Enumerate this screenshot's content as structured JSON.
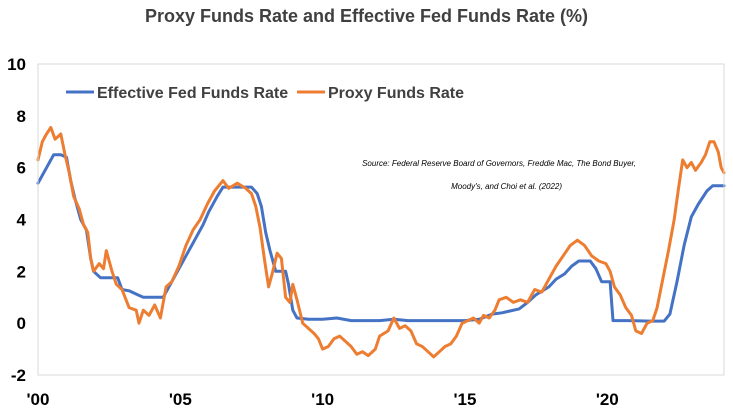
{
  "chart_data": {
    "type": "line",
    "title": "Proxy Funds Rate and Effective Fed Funds Rate (%)",
    "xlabel": "",
    "ylabel": "",
    "xlim": [
      2000,
      2024.1
    ],
    "ylim": [
      -2,
      10
    ],
    "x_ticks": [
      {
        "value": 2000,
        "label": "'00"
      },
      {
        "value": 2005,
        "label": "'05"
      },
      {
        "value": 2010,
        "label": "'10"
      },
      {
        "value": 2015,
        "label": "'15"
      },
      {
        "value": 2020,
        "label": "'20"
      }
    ],
    "y_ticks": [
      -2,
      0,
      2,
      4,
      6,
      8,
      10
    ],
    "grid": false,
    "legend_position": "top-left",
    "annotation": {
      "line1": "Source: Federal Reserve Board of Governors, Freddie Mac, The Bond Buyer,",
      "line2": "Moody's, and Choi et al. (2022)"
    },
    "series": [
      {
        "name": "Effective Fed Funds Rate",
        "color": "#4472C4",
        "points": [
          [
            2000.0,
            5.4
          ],
          [
            2000.2,
            5.8
          ],
          [
            2000.4,
            6.2
          ],
          [
            2000.55,
            6.5
          ],
          [
            2000.8,
            6.5
          ],
          [
            2001.0,
            6.4
          ],
          [
            2001.15,
            5.5
          ],
          [
            2001.3,
            4.8
          ],
          [
            2001.5,
            4.0
          ],
          [
            2001.7,
            3.6
          ],
          [
            2001.85,
            2.5
          ],
          [
            2001.95,
            2.0
          ],
          [
            2002.2,
            1.75
          ],
          [
            2002.5,
            1.75
          ],
          [
            2002.8,
            1.75
          ],
          [
            2002.95,
            1.3
          ],
          [
            2003.2,
            1.25
          ],
          [
            2003.5,
            1.1
          ],
          [
            2003.7,
            1.0
          ],
          [
            2004.0,
            1.0
          ],
          [
            2004.4,
            1.0
          ],
          [
            2004.6,
            1.4
          ],
          [
            2004.9,
            2.0
          ],
          [
            2005.2,
            2.6
          ],
          [
            2005.5,
            3.2
          ],
          [
            2005.8,
            3.8
          ],
          [
            2006.0,
            4.3
          ],
          [
            2006.3,
            4.9
          ],
          [
            2006.5,
            5.25
          ],
          [
            2007.0,
            5.25
          ],
          [
            2007.5,
            5.25
          ],
          [
            2007.7,
            5.0
          ],
          [
            2007.85,
            4.5
          ],
          [
            2008.0,
            3.5
          ],
          [
            2008.15,
            2.8
          ],
          [
            2008.35,
            2.0
          ],
          [
            2008.7,
            2.0
          ],
          [
            2008.8,
            1.5
          ],
          [
            2008.95,
            0.5
          ],
          [
            2009.1,
            0.2
          ],
          [
            2009.5,
            0.15
          ],
          [
            2010.0,
            0.15
          ],
          [
            2010.5,
            0.2
          ],
          [
            2011.0,
            0.1
          ],
          [
            2011.5,
            0.1
          ],
          [
            2012.0,
            0.1
          ],
          [
            2012.5,
            0.15
          ],
          [
            2013.0,
            0.1
          ],
          [
            2013.5,
            0.1
          ],
          [
            2014.0,
            0.1
          ],
          [
            2014.5,
            0.1
          ],
          [
            2015.0,
            0.1
          ],
          [
            2015.5,
            0.15
          ],
          [
            2015.95,
            0.35
          ],
          [
            2016.3,
            0.4
          ],
          [
            2016.9,
            0.55
          ],
          [
            2017.2,
            0.8
          ],
          [
            2017.5,
            1.1
          ],
          [
            2017.95,
            1.4
          ],
          [
            2018.2,
            1.7
          ],
          [
            2018.5,
            1.9
          ],
          [
            2018.75,
            2.2
          ],
          [
            2019.0,
            2.4
          ],
          [
            2019.4,
            2.4
          ],
          [
            2019.6,
            2.1
          ],
          [
            2019.8,
            1.6
          ],
          [
            2020.1,
            1.6
          ],
          [
            2020.2,
            0.1
          ],
          [
            2020.7,
            0.1
          ],
          [
            2021.5,
            0.08
          ],
          [
            2022.0,
            0.08
          ],
          [
            2022.2,
            0.35
          ],
          [
            2022.45,
            1.6
          ],
          [
            2022.7,
            3.0
          ],
          [
            2022.95,
            4.1
          ],
          [
            2023.2,
            4.6
          ],
          [
            2023.5,
            5.1
          ],
          [
            2023.7,
            5.3
          ],
          [
            2024.1,
            5.3
          ]
        ]
      },
      {
        "name": "Proxy Funds Rate",
        "color": "#ED7D31",
        "points": [
          [
            2000.0,
            6.3
          ],
          [
            2000.15,
            7.0
          ],
          [
            2000.3,
            7.3
          ],
          [
            2000.45,
            7.55
          ],
          [
            2000.6,
            7.1
          ],
          [
            2000.8,
            7.3
          ],
          [
            2000.95,
            6.5
          ],
          [
            2001.1,
            5.8
          ],
          [
            2001.25,
            4.9
          ],
          [
            2001.45,
            4.4
          ],
          [
            2001.6,
            3.8
          ],
          [
            2001.75,
            3.5
          ],
          [
            2001.85,
            2.5
          ],
          [
            2001.95,
            2.0
          ],
          [
            2002.15,
            2.3
          ],
          [
            2002.3,
            2.1
          ],
          [
            2002.4,
            2.8
          ],
          [
            2002.6,
            2.0
          ],
          [
            2002.75,
            1.5
          ],
          [
            2002.95,
            1.3
          ],
          [
            2003.2,
            0.6
          ],
          [
            2003.45,
            0.5
          ],
          [
            2003.55,
            0.0
          ],
          [
            2003.7,
            0.5
          ],
          [
            2003.9,
            0.3
          ],
          [
            2004.1,
            0.7
          ],
          [
            2004.3,
            0.2
          ],
          [
            2004.5,
            1.4
          ],
          [
            2004.7,
            1.6
          ],
          [
            2004.95,
            2.2
          ],
          [
            2005.2,
            3.0
          ],
          [
            2005.45,
            3.6
          ],
          [
            2005.7,
            4.0
          ],
          [
            2005.95,
            4.6
          ],
          [
            2006.2,
            5.1
          ],
          [
            2006.5,
            5.5
          ],
          [
            2006.7,
            5.2
          ],
          [
            2006.85,
            5.3
          ],
          [
            2007.0,
            5.4
          ],
          [
            2007.3,
            5.2
          ],
          [
            2007.5,
            5.0
          ],
          [
            2007.65,
            4.5
          ],
          [
            2007.8,
            3.7
          ],
          [
            2007.95,
            2.5
          ],
          [
            2008.1,
            1.4
          ],
          [
            2008.25,
            2.0
          ],
          [
            2008.4,
            2.7
          ],
          [
            2008.55,
            2.5
          ],
          [
            2008.7,
            1.0
          ],
          [
            2008.85,
            0.8
          ],
          [
            2008.95,
            1.5
          ],
          [
            2009.1,
            0.9
          ],
          [
            2009.3,
            0.0
          ],
          [
            2009.5,
            -0.2
          ],
          [
            2009.7,
            -0.4
          ],
          [
            2009.85,
            -0.6
          ],
          [
            2010.0,
            -1.0
          ],
          [
            2010.2,
            -0.9
          ],
          [
            2010.4,
            -0.6
          ],
          [
            2010.6,
            -0.5
          ],
          [
            2010.8,
            -0.7
          ],
          [
            2011.0,
            -0.9
          ],
          [
            2011.2,
            -1.2
          ],
          [
            2011.4,
            -1.1
          ],
          [
            2011.6,
            -1.25
          ],
          [
            2011.85,
            -1.0
          ],
          [
            2012.0,
            -0.5
          ],
          [
            2012.3,
            -0.3
          ],
          [
            2012.5,
            0.2
          ],
          [
            2012.7,
            -0.2
          ],
          [
            2012.9,
            -0.1
          ],
          [
            2013.1,
            -0.3
          ],
          [
            2013.3,
            -0.8
          ],
          [
            2013.5,
            -0.9
          ],
          [
            2013.7,
            -1.1
          ],
          [
            2013.9,
            -1.3
          ],
          [
            2014.1,
            -1.1
          ],
          [
            2014.3,
            -0.9
          ],
          [
            2014.5,
            -0.8
          ],
          [
            2014.7,
            -0.5
          ],
          [
            2014.9,
            0.0
          ],
          [
            2015.1,
            0.1
          ],
          [
            2015.3,
            0.2
          ],
          [
            2015.5,
            0.0
          ],
          [
            2015.65,
            0.3
          ],
          [
            2015.85,
            0.2
          ],
          [
            2016.05,
            0.5
          ],
          [
            2016.2,
            0.9
          ],
          [
            2016.45,
            1.0
          ],
          [
            2016.7,
            0.8
          ],
          [
            2016.95,
            0.9
          ],
          [
            2017.2,
            0.8
          ],
          [
            2017.45,
            1.3
          ],
          [
            2017.7,
            1.2
          ],
          [
            2017.95,
            1.7
          ],
          [
            2018.2,
            2.2
          ],
          [
            2018.45,
            2.6
          ],
          [
            2018.7,
            3.0
          ],
          [
            2018.95,
            3.2
          ],
          [
            2019.2,
            3.0
          ],
          [
            2019.45,
            2.6
          ],
          [
            2019.7,
            2.4
          ],
          [
            2019.95,
            2.3
          ],
          [
            2020.1,
            2.0
          ],
          [
            2020.25,
            1.4
          ],
          [
            2020.45,
            1.1
          ],
          [
            2020.65,
            0.6
          ],
          [
            2020.85,
            0.3
          ],
          [
            2021.0,
            -0.3
          ],
          [
            2021.2,
            -0.4
          ],
          [
            2021.4,
            0.0
          ],
          [
            2021.6,
            0.1
          ],
          [
            2021.75,
            0.6
          ],
          [
            2021.95,
            1.7
          ],
          [
            2022.15,
            2.8
          ],
          [
            2022.35,
            4.0
          ],
          [
            2022.5,
            5.2
          ],
          [
            2022.65,
            6.3
          ],
          [
            2022.8,
            6.0
          ],
          [
            2022.95,
            6.2
          ],
          [
            2023.1,
            5.9
          ],
          [
            2023.3,
            6.2
          ],
          [
            2023.45,
            6.5
          ],
          [
            2023.6,
            7.0
          ],
          [
            2023.75,
            7.0
          ],
          [
            2023.9,
            6.6
          ],
          [
            2024.0,
            6.0
          ],
          [
            2024.1,
            5.8
          ]
        ]
      }
    ]
  }
}
